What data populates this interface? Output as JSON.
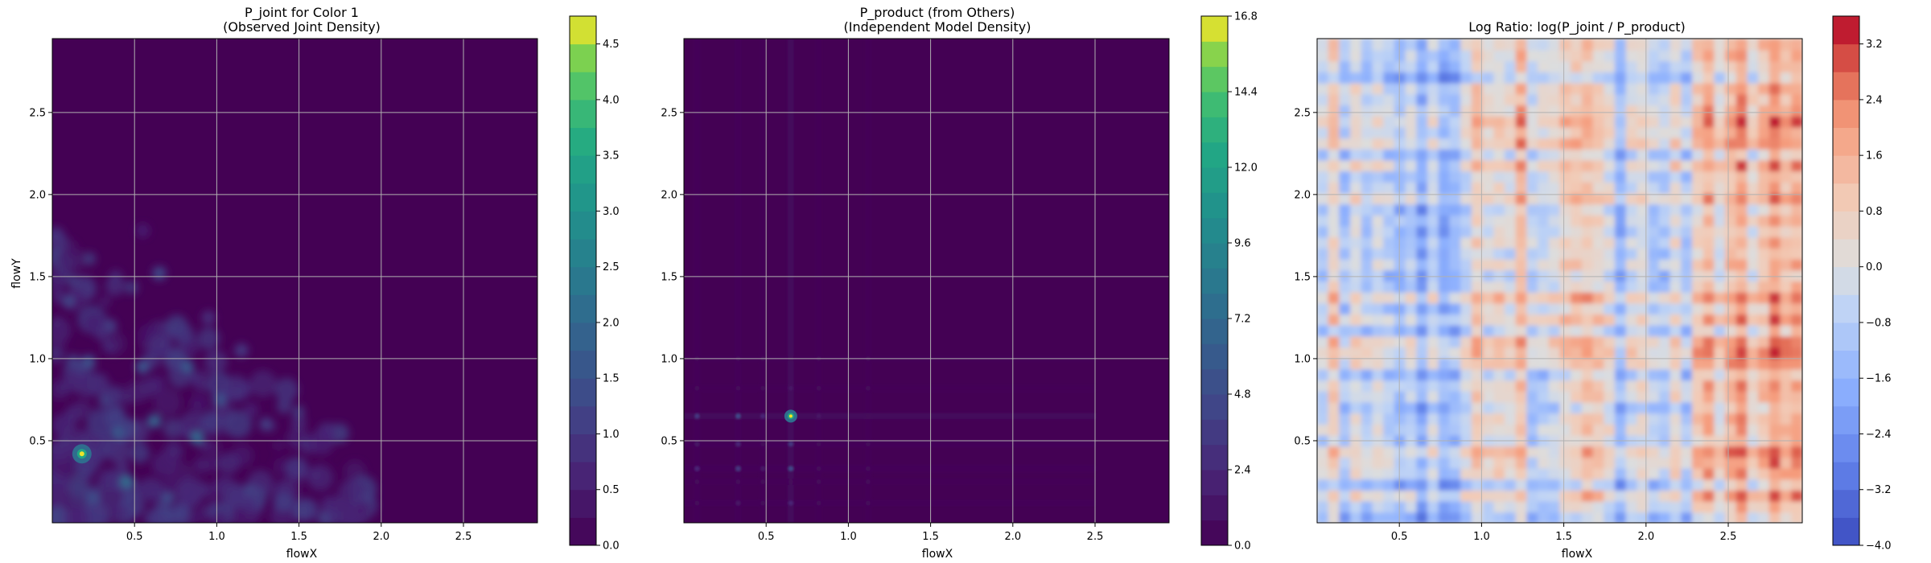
{
  "chart_data": [
    {
      "type": "heatmap",
      "title_line1": "P_joint for Color 1",
      "title_line2": "(Observed Joint Density)",
      "xlabel": "flowX",
      "ylabel": "flowY",
      "xlim": [
        0,
        2.95
      ],
      "ylim": [
        0,
        2.95
      ],
      "x_ticks": [
        0.5,
        1.0,
        1.5,
        2.0,
        2.5
      ],
      "x_tick_labels": [
        "0.5",
        "1.0",
        "1.5",
        "2.0",
        "2.5"
      ],
      "y_ticks": [
        0.5,
        1.0,
        1.5,
        2.0,
        2.5
      ],
      "y_tick_labels": [
        "0.5",
        "1.0",
        "1.5",
        "2.0",
        "2.5"
      ],
      "grid": true,
      "colormap": "viridis",
      "colorbar_range": [
        0.0,
        4.75
      ],
      "colorbar_ticks": [
        0.0,
        0.5,
        1.0,
        1.5,
        2.0,
        2.5,
        3.0,
        3.5,
        4.0,
        4.5
      ],
      "colorbar_tick_labels": [
        "0.0",
        "0.5",
        "1.0",
        "1.5",
        "2.0",
        "2.5",
        "3.0",
        "3.5",
        "4.0",
        "4.5"
      ],
      "colorbar_levels": 19,
      "peak": {
        "x": 0.18,
        "y": 0.42,
        "value": 4.7
      },
      "hotspots": [
        {
          "x": 0.45,
          "y": 0.25,
          "v": 2.4
        },
        {
          "x": 0.62,
          "y": 0.62,
          "v": 2.2
        },
        {
          "x": 0.88,
          "y": 0.52,
          "v": 2.3
        },
        {
          "x": 0.55,
          "y": 0.95,
          "v": 1.8
        },
        {
          "x": 0.22,
          "y": 0.98,
          "v": 1.7
        },
        {
          "x": 0.1,
          "y": 1.35,
          "v": 1.4
        },
        {
          "x": 0.65,
          "y": 1.52,
          "v": 1.5
        },
        {
          "x": 1.02,
          "y": 0.75,
          "v": 1.7
        },
        {
          "x": 0.82,
          "y": 0.95,
          "v": 1.9
        },
        {
          "x": 0.4,
          "y": 0.55,
          "v": 1.9
        },
        {
          "x": 1.3,
          "y": 0.6,
          "v": 1.2
        },
        {
          "x": 1.15,
          "y": 1.05,
          "v": 1.1
        },
        {
          "x": 0.35,
          "y": 1.2,
          "v": 1.2
        },
        {
          "x": 1.5,
          "y": 0.32,
          "v": 1.0
        },
        {
          "x": 0.7,
          "y": 0.15,
          "v": 1.5
        },
        {
          "x": 0.25,
          "y": 0.15,
          "v": 1.6
        },
        {
          "x": 1.75,
          "y": 0.12,
          "v": 0.7
        },
        {
          "x": 1.2,
          "y": 0.2,
          "v": 1.3
        },
        {
          "x": 0.95,
          "y": 1.25,
          "v": 0.9
        },
        {
          "x": 0.55,
          "y": 1.78,
          "v": 0.6
        }
      ]
    },
    {
      "type": "heatmap",
      "title_line1": "P_product (from Others)",
      "title_line2": "(Independent Model Density)",
      "xlabel": "flowX",
      "ylabel": "",
      "xlim": [
        0,
        2.95
      ],
      "ylim": [
        0,
        2.95
      ],
      "x_ticks": [
        0.5,
        1.0,
        1.5,
        2.0,
        2.5
      ],
      "x_tick_labels": [
        "0.5",
        "1.0",
        "1.5",
        "2.0",
        "2.5"
      ],
      "y_ticks": [
        0.5,
        1.0,
        1.5,
        2.0,
        2.5
      ],
      "y_tick_labels": [
        "0.5",
        "1.0",
        "1.5",
        "2.0",
        "2.5"
      ],
      "grid": true,
      "colormap": "viridis",
      "colorbar_range": [
        0.0,
        16.8
      ],
      "colorbar_ticks": [
        0.0,
        2.4,
        4.8,
        7.2,
        9.6,
        12.0,
        14.4,
        16.8
      ],
      "colorbar_tick_labels": [
        "0.0",
        "2.4",
        "4.8",
        "7.2",
        "9.6",
        "12.0",
        "14.4",
        "16.8"
      ],
      "colorbar_levels": 21,
      "peak": {
        "x": 0.65,
        "y": 0.65,
        "value": 16.8
      },
      "x_lines": [
        0.65,
        0.33,
        0.08,
        0.48,
        0.82,
        1.12
      ],
      "y_lines": [
        0.65,
        0.33,
        0.48,
        0.12,
        0.82,
        1.0,
        0.25
      ]
    },
    {
      "type": "heatmap",
      "title_line1": "Log Ratio: log(P_joint / P_product)",
      "title_line2": "",
      "xlabel": "flowX",
      "ylabel": "",
      "xlim": [
        0,
        2.95
      ],
      "ylim": [
        0,
        2.95
      ],
      "x_ticks": [
        0.5,
        1.0,
        1.5,
        2.0,
        2.5
      ],
      "x_tick_labels": [
        "0.5",
        "1.0",
        "1.5",
        "2.0",
        "2.5"
      ],
      "y_ticks": [
        0.5,
        1.0,
        1.5,
        2.0,
        2.5
      ],
      "y_tick_labels": [
        "0.5",
        "1.0",
        "1.5",
        "2.0",
        "2.5"
      ],
      "grid": true,
      "colormap": "coolwarm",
      "colorbar_range": [
        -4.0,
        3.6
      ],
      "colorbar_ticks": [
        -4.0,
        -3.2,
        -2.4,
        -1.6,
        -0.8,
        0.0,
        0.8,
        1.6,
        2.4,
        3.2
      ],
      "colorbar_tick_labels": [
        "−4.0",
        "−3.2",
        "−2.4",
        "−1.6",
        "−0.8",
        "0.0",
        "0.8",
        "1.6",
        "2.4",
        "3.2"
      ],
      "colorbar_levels": 19
    }
  ]
}
